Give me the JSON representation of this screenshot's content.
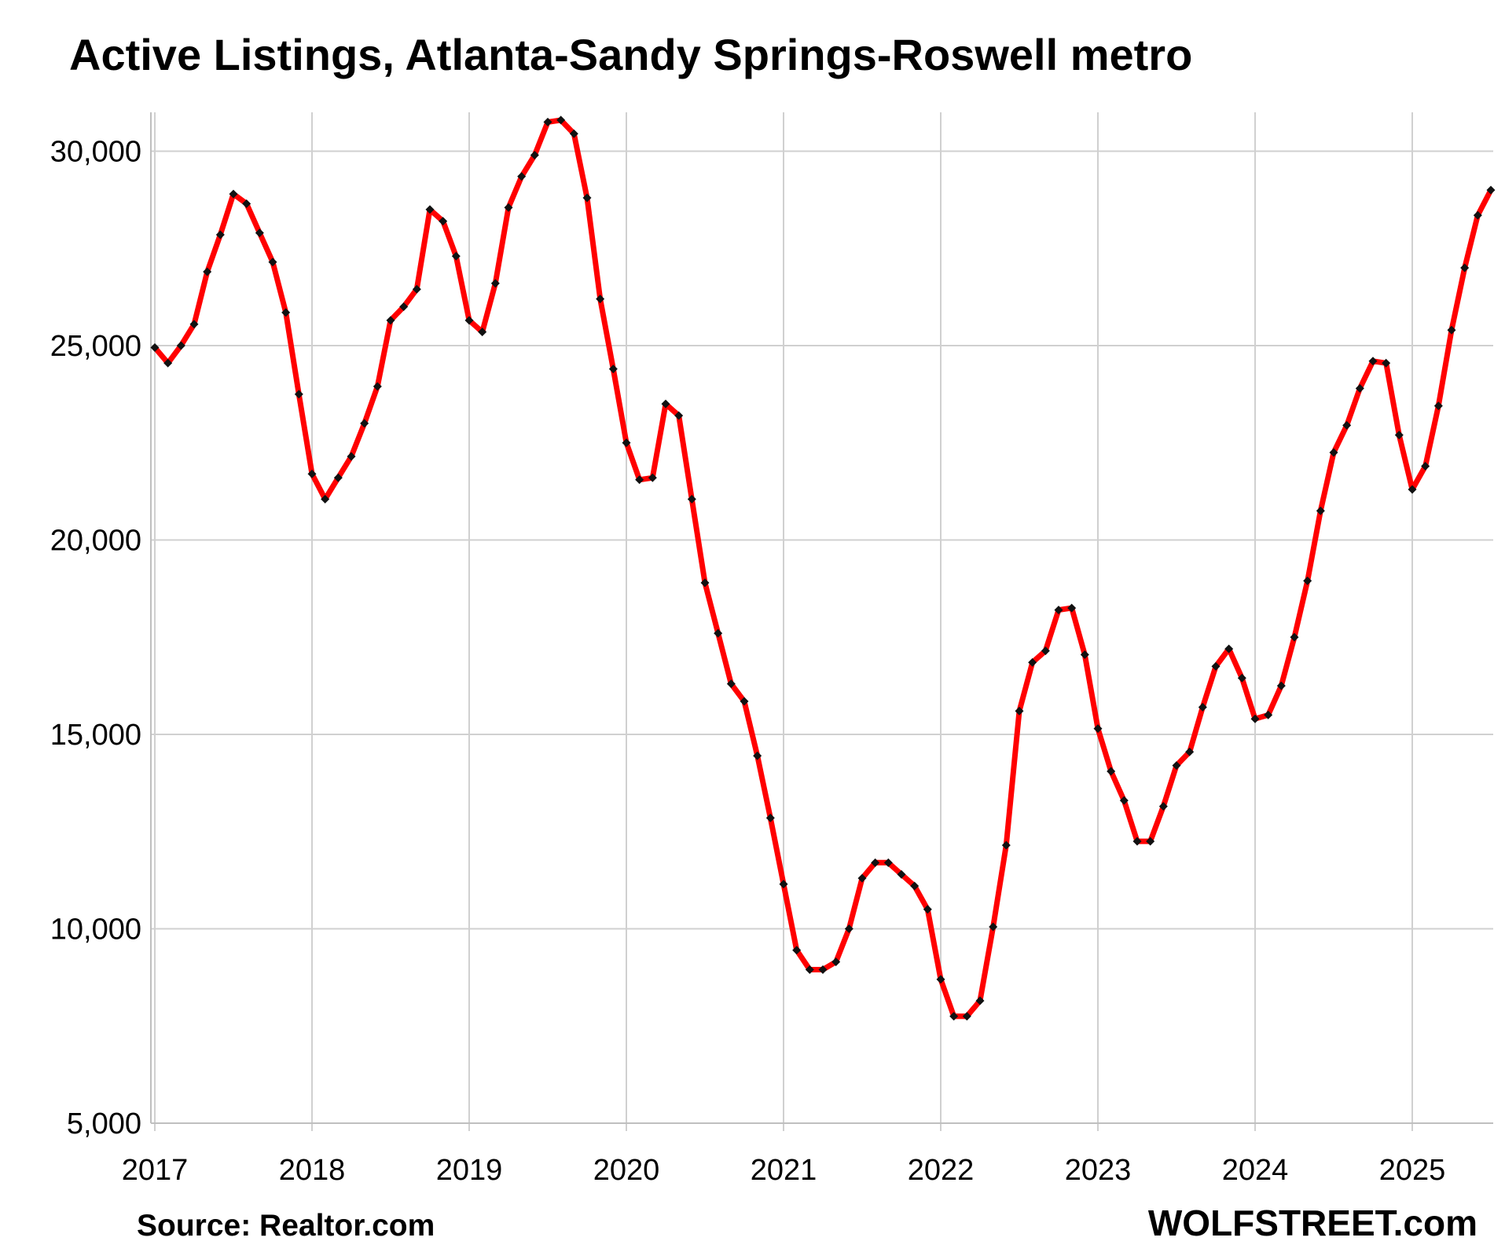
{
  "chart_data": {
    "type": "line",
    "title": "Active Listings, Atlanta-Sandy Springs-Roswell metro",
    "source": "Source: Realtor.com",
    "brand": "WOLFSTREET.com",
    "xlabel": "",
    "ylabel": "",
    "ylim": [
      5000,
      31000
    ],
    "xlim": [
      2017.0,
      2025.55
    ],
    "yticks": [
      5000,
      10000,
      15000,
      20000,
      25000,
      30000
    ],
    "ytick_labels": [
      "5,000",
      "10,000",
      "15,000",
      "20,000",
      "25,000",
      "30,000"
    ],
    "xticks": [
      2017,
      2018,
      2019,
      2020,
      2021,
      2022,
      2023,
      2024,
      2025
    ],
    "xtick_labels": [
      "2017",
      "2018",
      "2019",
      "2020",
      "2021",
      "2022",
      "2023",
      "2024",
      "2025"
    ],
    "grid": true,
    "line_color": "#ff0000",
    "marker_color": "#111111",
    "start": "2017-01",
    "series": [
      {
        "values": [
          24950,
          24550,
          25000,
          25550,
          26900,
          27850,
          28900,
          28650,
          27900,
          27150,
          25850,
          23750,
          21700,
          21050,
          21600,
          22150,
          23000,
          23950,
          25650,
          26000,
          26450,
          28500,
          28200,
          27300,
          25650,
          25350,
          26600,
          28550,
          29350,
          29900,
          30750,
          30800,
          30450,
          28800,
          26200,
          24400,
          22500,
          21550,
          21600,
          23500,
          23200,
          21050,
          18900,
          17600,
          16300,
          15850,
          14450,
          12850,
          11150,
          9450,
          8950,
          8950,
          9150,
          10000,
          11300,
          11700,
          11700,
          11400,
          11100,
          10500,
          8700,
          7750,
          7750,
          8150,
          10050,
          12150,
          15600,
          16850,
          17150,
          18200,
          18250,
          17050,
          15150,
          14050,
          13300,
          12250,
          12250,
          13150,
          14200,
          14550,
          15700,
          16750,
          17200,
          16450,
          15400,
          15500,
          16250,
          17500,
          18950,
          20750,
          22250,
          22950,
          23900,
          24600,
          24550,
          22700,
          21300,
          21900,
          23450,
          25400,
          27000,
          28350,
          29000
        ]
      }
    ]
  }
}
